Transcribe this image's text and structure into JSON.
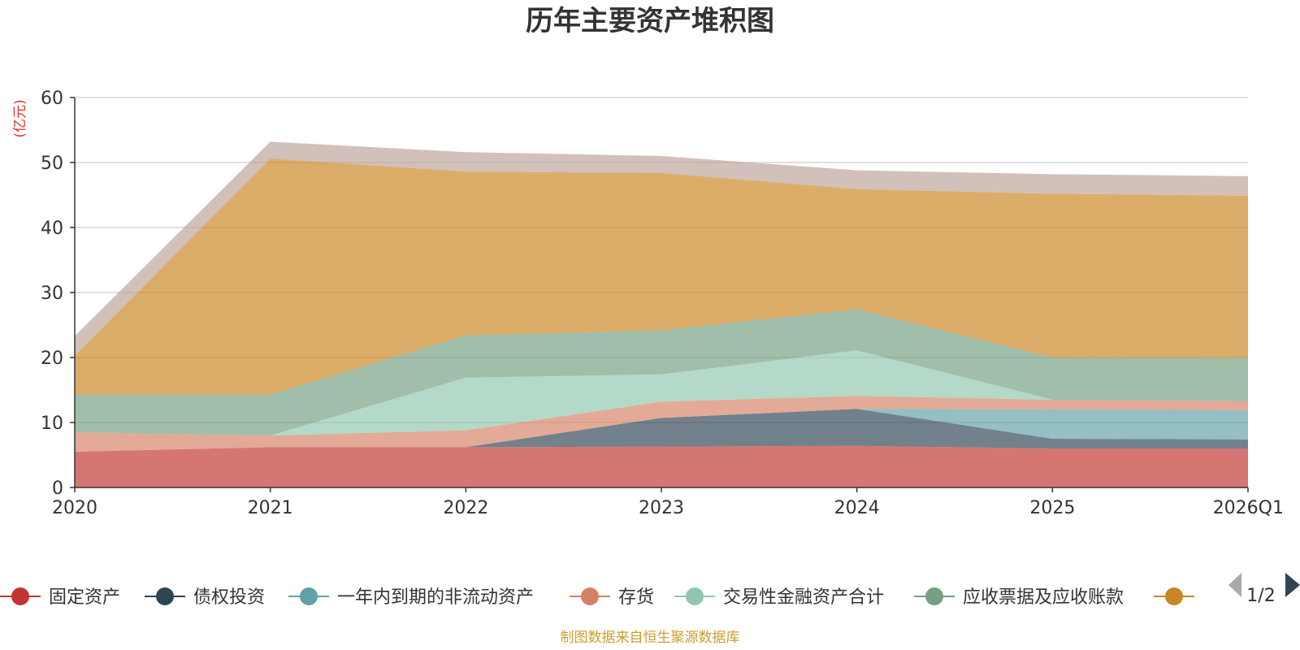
{
  "chart_data": {
    "type": "area",
    "stacked": true,
    "title": "历年主要资产堆积图",
    "ylabel": "(亿元)",
    "xlabel": "",
    "ylim": [
      0,
      60
    ],
    "yticks": [
      0,
      10,
      20,
      30,
      40,
      50,
      60
    ],
    "grid": true,
    "categories": [
      "2020",
      "2021",
      "2022",
      "2023",
      "2024",
      "2025",
      "2026Q1"
    ],
    "series": [
      {
        "name": "固定资产",
        "color": "#c23531",
        "values": [
          5.5,
          6.2,
          6.2,
          6.3,
          6.4,
          6.0,
          6.0
        ]
      },
      {
        "name": "债权投资",
        "color": "#2f4554",
        "values": [
          0,
          0,
          0,
          4.4,
          5.7,
          1.5,
          1.4
        ]
      },
      {
        "name": "一年内到期的非流动资产",
        "color": "#61a0a8",
        "values": [
          0,
          0,
          0,
          0,
          0,
          4.5,
          4.5
        ]
      },
      {
        "name": "存货",
        "color": "#d48265",
        "values": [
          3.0,
          1.8,
          2.6,
          2.5,
          2.0,
          1.5,
          1.4
        ]
      },
      {
        "name": "交易性金融资产合计",
        "color": "#91c7ae",
        "values": [
          0,
          0,
          8.1,
          4.2,
          7.0,
          0,
          0
        ]
      },
      {
        "name": "应收票据及应收账款",
        "color": "#749f83",
        "values": [
          5.8,
          6.3,
          6.5,
          6.8,
          6.3,
          6.5,
          6.6
        ]
      },
      {
        "name": "",
        "color": "#ca8622",
        "values": [
          6.0,
          36.3,
          25.2,
          24.2,
          18.5,
          25.2,
          25.0
        ]
      },
      {
        "name": "",
        "color": "#bda29a",
        "values": [
          3.0,
          2.6,
          3.0,
          2.6,
          2.9,
          3.0,
          3.0
        ]
      }
    ]
  },
  "legend": {
    "page": "1/2"
  },
  "footer": {
    "source": "制图数据来自恒生聚源数据库"
  }
}
